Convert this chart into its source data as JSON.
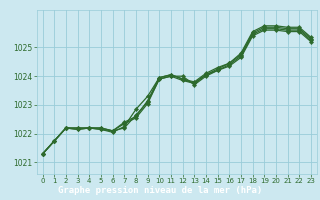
{
  "xlabel": "Graphe pression niveau de la mer (hPa)",
  "background_color": "#cce8f0",
  "grid_color": "#99ccd9",
  "line_color": "#2d6a2d",
  "label_bg_color": "#336633",
  "label_text_color": "#ffffff",
  "xlim": [
    -0.5,
    23.5
  ],
  "ylim": [
    1020.6,
    1026.3
  ],
  "yticks": [
    1021,
    1022,
    1023,
    1024,
    1025
  ],
  "xticks": [
    0,
    1,
    2,
    3,
    4,
    5,
    6,
    7,
    8,
    9,
    10,
    11,
    12,
    13,
    14,
    15,
    16,
    17,
    18,
    19,
    20,
    21,
    22,
    23
  ],
  "series": [
    [
      1021.3,
      1021.75,
      1022.2,
      1022.15,
      1022.2,
      1022.2,
      1022.1,
      1022.35,
      1022.55,
      1023.05,
      1023.9,
      1024.0,
      1023.85,
      1023.75,
      1024.05,
      1024.2,
      1024.4,
      1024.7,
      1025.45,
      1025.65,
      1025.65,
      1025.6,
      1025.6,
      1025.25
    ],
    [
      1021.3,
      1021.75,
      1022.2,
      1022.15,
      1022.2,
      1022.2,
      1022.1,
      1022.2,
      1022.65,
      1023.1,
      1023.9,
      1024.0,
      1024.0,
      1023.7,
      1024.0,
      1024.2,
      1024.35,
      1024.65,
      1025.4,
      1025.6,
      1025.6,
      1025.55,
      1025.55,
      1025.2
    ],
    [
      1021.3,
      1021.75,
      1022.2,
      1022.2,
      1022.2,
      1022.15,
      1022.05,
      1022.25,
      1022.85,
      1023.3,
      1023.95,
      1024.05,
      1023.9,
      1023.75,
      1024.05,
      1024.25,
      1024.45,
      1024.75,
      1025.5,
      1025.7,
      1025.7,
      1025.65,
      1025.65,
      1025.3
    ],
    [
      1021.3,
      1021.75,
      1022.2,
      1022.2,
      1022.2,
      1022.15,
      1022.1,
      1022.4,
      1022.6,
      1023.15,
      1023.95,
      1024.05,
      1023.9,
      1023.8,
      1024.1,
      1024.3,
      1024.45,
      1024.8,
      1025.55,
      1025.75,
      1025.75,
      1025.7,
      1025.7,
      1025.35
    ]
  ]
}
